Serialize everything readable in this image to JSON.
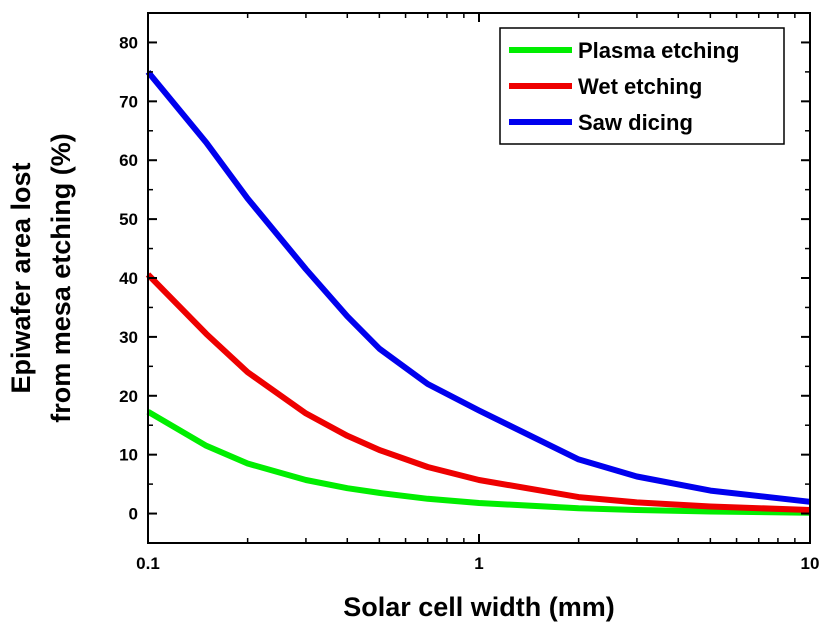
{
  "chart_data": {
    "type": "line",
    "xscale": "log",
    "xlim": [
      0.1,
      10
    ],
    "ylim": [
      -5,
      85
    ],
    "xticks": [
      0.1,
      1,
      10
    ],
    "xtick_labels": [
      "0.1",
      "1",
      "10"
    ],
    "yticks": [
      0,
      10,
      20,
      30,
      40,
      50,
      60,
      70,
      80
    ],
    "ytick_labels": [
      "0",
      "10",
      "20",
      "30",
      "40",
      "50",
      "60",
      "70",
      "80"
    ],
    "xlabel": "Solar cell width (mm)",
    "ylabel": [
      "Epiwafer area lost",
      "from mesa etching (%)"
    ],
    "grid": false,
    "legend_position": "top-right",
    "series": [
      {
        "name": "Plasma etching",
        "color": "#00ee00",
        "x": [
          0.1,
          0.15,
          0.2,
          0.3,
          0.4,
          0.5,
          0.7,
          1,
          2,
          3,
          5,
          10
        ],
        "y": [
          17.3,
          11.5,
          8.5,
          5.7,
          4.3,
          3.5,
          2.5,
          1.8,
          0.9,
          0.6,
          0.35,
          0.15
        ]
      },
      {
        "name": "Wet etching",
        "color": "#ee0000",
        "x": [
          0.1,
          0.15,
          0.2,
          0.3,
          0.4,
          0.5,
          0.7,
          1,
          2,
          3,
          5,
          10
        ],
        "y": [
          40.6,
          30.5,
          24.0,
          17.0,
          13.2,
          10.8,
          7.9,
          5.7,
          2.8,
          1.9,
          1.2,
          0.6
        ]
      },
      {
        "name": "Saw dicing",
        "color": "#0000ee",
        "x": [
          0.1,
          0.15,
          0.2,
          0.3,
          0.4,
          0.5,
          0.7,
          1,
          2,
          3,
          5,
          10
        ],
        "y": [
          75.0,
          63.0,
          53.5,
          41.5,
          33.5,
          28.0,
          22.0,
          17.5,
          9.2,
          6.3,
          3.9,
          2.0
        ]
      }
    ]
  }
}
